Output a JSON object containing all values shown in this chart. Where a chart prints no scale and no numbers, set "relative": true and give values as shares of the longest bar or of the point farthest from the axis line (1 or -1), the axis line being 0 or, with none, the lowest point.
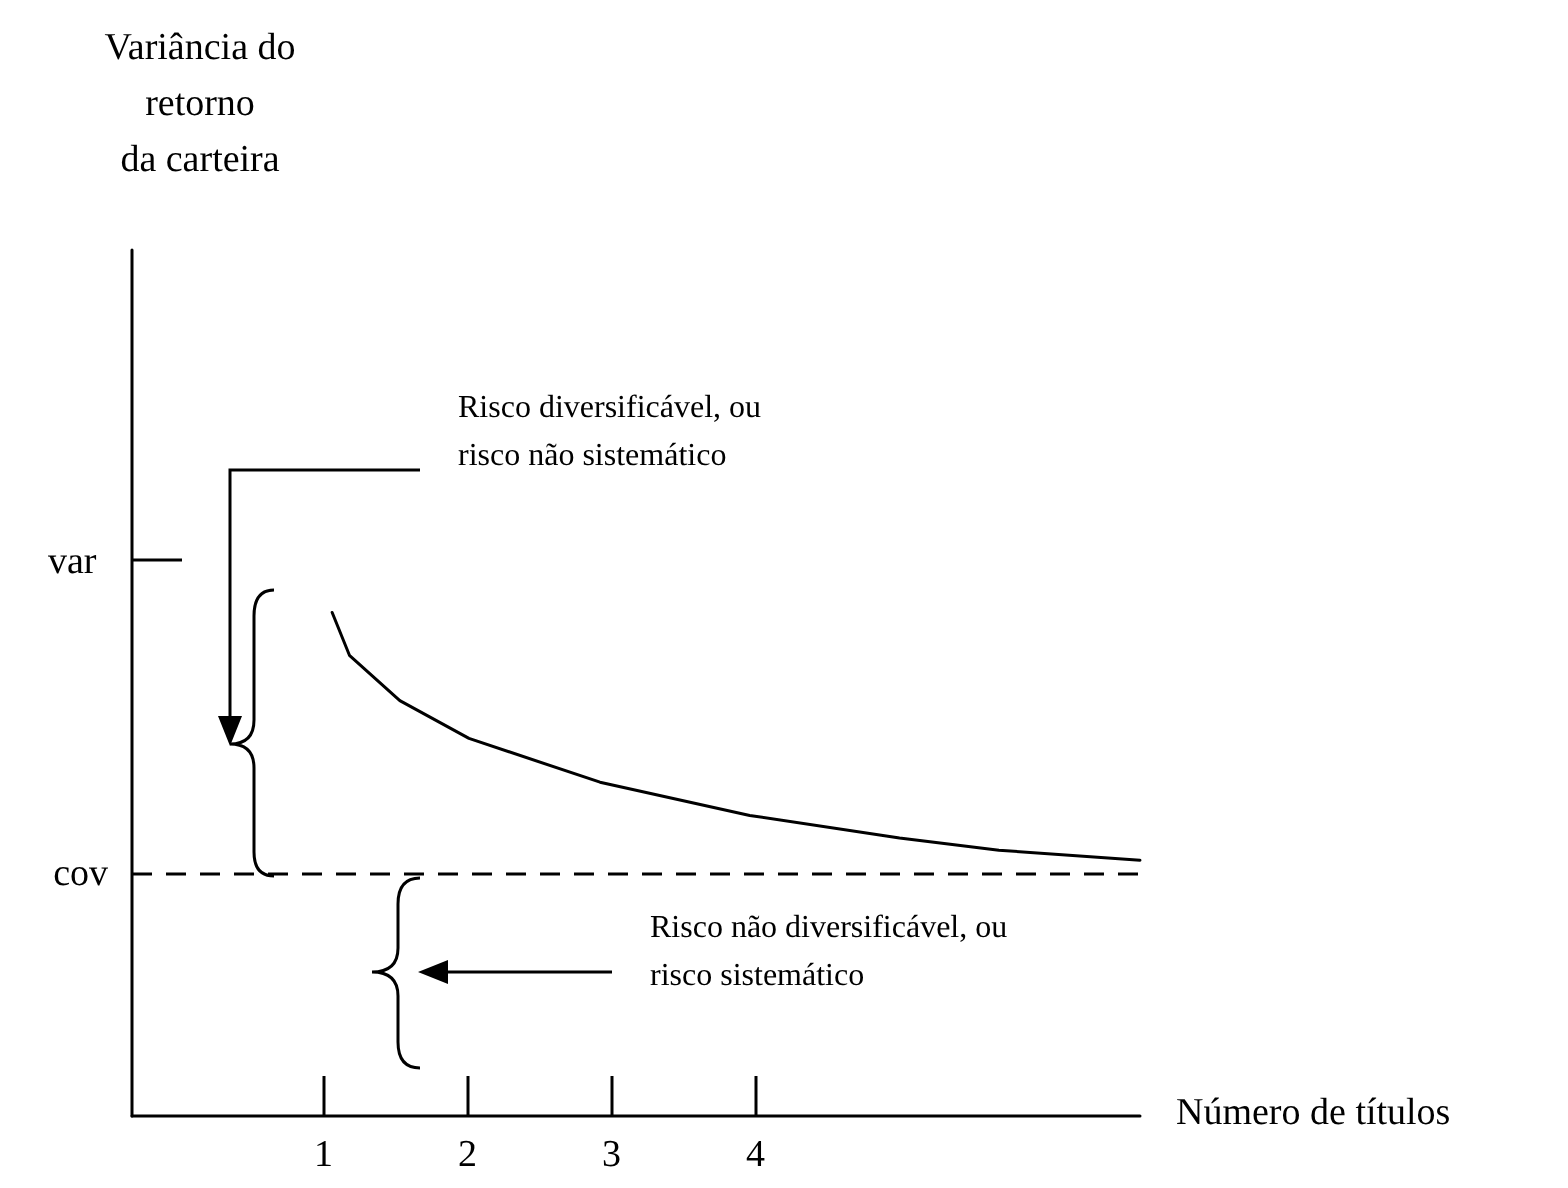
{
  "chart_data": {
    "type": "line",
    "relative": true,
    "xlabel": "Número de títulos",
    "x": [
      1.06,
      1.18,
      1.53,
      2.01,
      2.92,
      3.96,
      5.0,
      5.69,
      6.67
    ],
    "series": [
      {
        "color": "#000000",
        "values": [
          1.0,
          0.915,
          0.825,
          0.75,
          0.663,
          0.597,
          0.552,
          0.528,
          0.508
        ]
      }
    ],
    "xlim": [
      -0.33,
      6.67
    ],
    "xticks": [
      {
        "value": 1,
        "label": "1"
      },
      {
        "value": 2,
        "label": "2"
      },
      {
        "value": 3,
        "label": "3"
      },
      {
        "value": 4,
        "label": "4"
      }
    ],
    "ref_lines": [
      {
        "axis": "y",
        "value": 0.476,
        "label": "cov",
        "line_style": "dashed",
        "color": "#000000"
      }
    ],
    "annotations": [
      "Variância do\nretorno\nda carteira",
      "var",
      "Risco diversificável, ou\nrisco não sistemático",
      "Risco não diversificável, ou\nrisco sistemático"
    ],
    "grid": false,
    "marker": "none",
    "line_style": "solid"
  }
}
